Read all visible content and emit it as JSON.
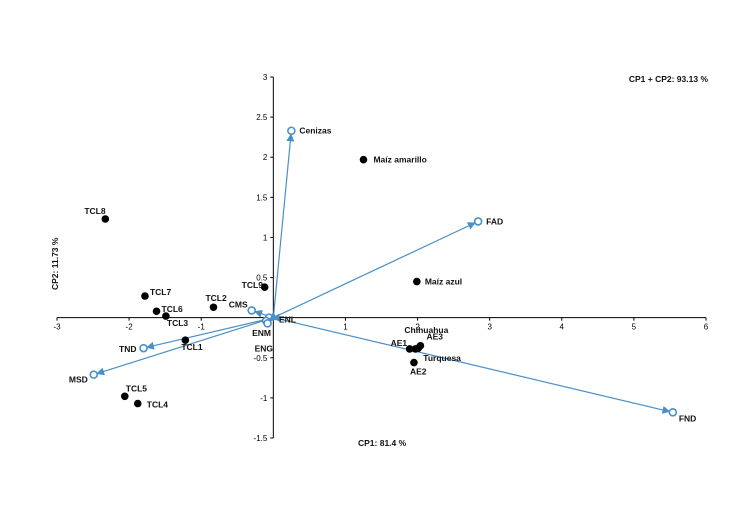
{
  "chart_data": {
    "type": "scatter",
    "subtype": "biplot",
    "xlabel": "CP1: 81.4 %",
    "ylabel": "CP2: 11.73 %",
    "annotation": "CP1 + CP2: 93.13 %",
    "xlim": [
      -3,
      6
    ],
    "ylim": [
      -1.5,
      3
    ],
    "x_ticks": [
      "-3",
      "-2",
      "-1",
      "1",
      "2",
      "3",
      "4",
      "5",
      "6"
    ],
    "y_ticks": [
      "3",
      "2.5",
      "2",
      "1.5",
      "1",
      "0.5",
      "-0.5",
      "-1",
      "-1.5"
    ],
    "grid": false,
    "colors": {
      "points": "#000000",
      "vectors": "#4a90c8",
      "axes": "#000000"
    },
    "points": [
      {
        "name": "TCL8",
        "x": -2.33,
        "y": 1.23
      },
      {
        "name": "TCL7",
        "x": -1.78,
        "y": 0.27
      },
      {
        "name": "TCL6",
        "x": -1.62,
        "y": 0.08
      },
      {
        "name": "TCL3",
        "x": -1.49,
        "y": 0.02
      },
      {
        "name": "TCL2",
        "x": -0.83,
        "y": 0.13
      },
      {
        "name": "TCL9",
        "x": -0.12,
        "y": 0.38
      },
      {
        "name": "TCL1",
        "x": -1.22,
        "y": -0.28
      },
      {
        "name": "TCL5",
        "x": -2.06,
        "y": -0.98
      },
      {
        "name": "TCL4",
        "x": -1.88,
        "y": -1.07
      },
      {
        "name": "Maíz amarillo",
        "x": 1.25,
        "y": 1.97
      },
      {
        "name": "Maíz azul",
        "x": 1.99,
        "y": 0.45
      },
      {
        "name": "AE1",
        "x": 1.89,
        "y": -0.39
      },
      {
        "name": "Chihuahua",
        "x": 1.97,
        "y": -0.39
      },
      {
        "name": "AE3",
        "x": 2.04,
        "y": -0.35
      },
      {
        "name": "AE2",
        "x": 1.95,
        "y": -0.56
      },
      {
        "name": "Turquesa",
        "x": 2.01,
        "y": -0.38
      }
    ],
    "vectors": [
      {
        "name": "Cenizas",
        "x": 0.25,
        "y": 2.33
      },
      {
        "name": "FAD",
        "x": 2.84,
        "y": 1.2
      },
      {
        "name": "FND",
        "x": 5.54,
        "y": -1.18
      },
      {
        "name": "MSD",
        "x": -2.49,
        "y": -0.71
      },
      {
        "name": "TND",
        "x": -1.8,
        "y": -0.38
      },
      {
        "name": "CMS",
        "x": -0.3,
        "y": 0.09
      },
      {
        "name": "ENL",
        "x": -0.06,
        "y": 0.0
      },
      {
        "name": "ENM",
        "x": -0.1,
        "y": -0.04
      },
      {
        "name": "ENG",
        "x": -0.08,
        "y": -0.07
      }
    ]
  }
}
